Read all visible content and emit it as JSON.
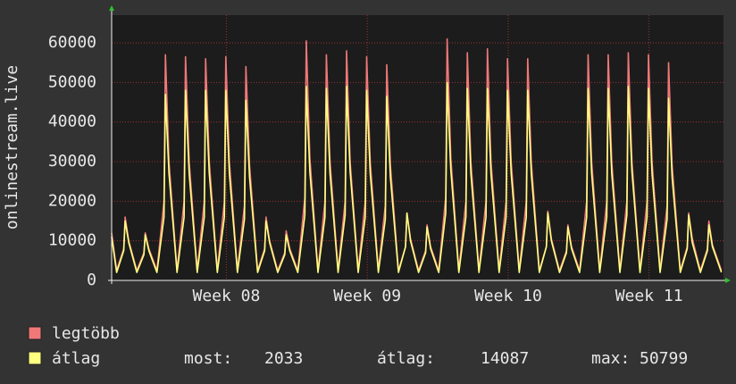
{
  "chart_data": {
    "type": "line",
    "ylabel": "onlinestream.live",
    "xlim": [
      0,
      30.4
    ],
    "xticks": [
      {
        "value": 5.7,
        "label": "Week 08"
      },
      {
        "value": 12.7,
        "label": "Week 09"
      },
      {
        "value": 19.7,
        "label": "Week 10"
      },
      {
        "value": 26.7,
        "label": "Week 11"
      }
    ],
    "ylim": [
      0,
      67000
    ],
    "yticks": [
      0,
      10000,
      20000,
      30000,
      40000,
      50000,
      60000
    ],
    "grid": true,
    "x": [
      0,
      0.25,
      0.6,
      0.67,
      0.85,
      1.25,
      1.6,
      1.67,
      1.85,
      2.25,
      2.6,
      2.67,
      2.85,
      3.25,
      3.6,
      3.67,
      3.85,
      4.25,
      4.6,
      4.67,
      4.85,
      5.25,
      5.6,
      5.67,
      5.85,
      6.25,
      6.6,
      6.67,
      6.85,
      7.25,
      7.6,
      7.67,
      7.85,
      8.25,
      8.6,
      8.67,
      8.85,
      9.25,
      9.6,
      9.67,
      9.85,
      10.25,
      10.6,
      10.67,
      10.85,
      11.25,
      11.6,
      11.67,
      11.85,
      12.25,
      12.6,
      12.67,
      12.85,
      13.25,
      13.6,
      13.67,
      13.85,
      14.25,
      14.6,
      14.67,
      14.85,
      15.25,
      15.6,
      15.67,
      15.85,
      16.25,
      16.6,
      16.67,
      16.85,
      17.25,
      17.6,
      17.67,
      17.85,
      18.25,
      18.6,
      18.67,
      18.85,
      19.25,
      19.6,
      19.67,
      19.85,
      20.25,
      20.6,
      20.67,
      20.85,
      21.25,
      21.6,
      21.67,
      21.85,
      22.25,
      22.6,
      22.67,
      22.85,
      23.25,
      23.6,
      23.67,
      23.85,
      24.25,
      24.6,
      24.67,
      24.85,
      25.25,
      25.6,
      25.67,
      25.85,
      26.25,
      26.6,
      26.67,
      26.85,
      27.25,
      27.6,
      27.67,
      27.85,
      28.25,
      28.6,
      28.67,
      28.85,
      29.25,
      29.6,
      29.67,
      29.85,
      30.3
    ],
    "series": [
      {
        "name": "legtöbb",
        "color": "#f07878",
        "values": [
          12000,
          2500,
          8000,
          16000,
          10000,
          2500,
          7000,
          12000,
          8000,
          2500,
          20000,
          57000,
          30000,
          2500,
          20000,
          56500,
          30000,
          2500,
          20000,
          56000,
          30000,
          2500,
          20000,
          56500,
          30000,
          2500,
          19000,
          54000,
          29000,
          2500,
          8000,
          16000,
          10000,
          2500,
          7000,
          12500,
          8000,
          2500,
          21000,
          60500,
          31000,
          2500,
          20000,
          57000,
          30000,
          2500,
          20000,
          58000,
          30000,
          2500,
          20000,
          56500,
          30000,
          2500,
          19000,
          54500,
          29000,
          2500,
          8500,
          17000,
          10500,
          2500,
          7500,
          14000,
          8500,
          2500,
          21000,
          61000,
          31000,
          2500,
          20000,
          57500,
          30000,
          2500,
          20000,
          58500,
          30000,
          2500,
          20000,
          56000,
          30000,
          2500,
          20000,
          56000,
          30000,
          2500,
          8500,
          17500,
          10500,
          2500,
          7500,
          14000,
          8500,
          2500,
          20000,
          57000,
          30000,
          2500,
          20000,
          57000,
          30000,
          2500,
          20000,
          57500,
          30000,
          2500,
          20000,
          57000,
          30000,
          2500,
          19000,
          55000,
          29000,
          2500,
          8500,
          17000,
          10500,
          2500,
          8000,
          15000,
          9000,
          2500
        ]
      },
      {
        "name": "átlag",
        "color": "#ffff80",
        "values": [
          11000,
          2000,
          7500,
          15000,
          9500,
          2000,
          6500,
          11500,
          7500,
          2000,
          16000,
          47000,
          27000,
          2000,
          16000,
          48000,
          27000,
          2000,
          16000,
          48000,
          27000,
          2000,
          16000,
          48000,
          27000,
          2000,
          15500,
          45500,
          26000,
          2000,
          7500,
          15000,
          9500,
          2000,
          6500,
          11500,
          7500,
          2000,
          16500,
          49000,
          27500,
          2000,
          16000,
          48500,
          27000,
          2000,
          16500,
          49000,
          27500,
          2000,
          16000,
          48000,
          27000,
          2000,
          15500,
          46500,
          26000,
          2000,
          8500,
          17000,
          10000,
          2000,
          7000,
          13500,
          8000,
          2000,
          17000,
          50000,
          28000,
          2000,
          16000,
          48500,
          27000,
          2000,
          16000,
          48500,
          27000,
          2000,
          16000,
          48000,
          27000,
          2000,
          16000,
          48000,
          27000,
          2000,
          8500,
          17000,
          10000,
          2000,
          7000,
          13500,
          8000,
          2000,
          16000,
          48500,
          27000,
          2000,
          16000,
          48500,
          27000,
          2000,
          16500,
          49000,
          27500,
          2000,
          16000,
          48500,
          27000,
          2000,
          15500,
          46000,
          26000,
          2000,
          8000,
          16500,
          9500,
          2000,
          7500,
          14000,
          8500,
          2033
        ]
      }
    ],
    "stats": [
      {
        "label": "most:",
        "value": 2033
      },
      {
        "label": "átlag:",
        "value": 14087
      },
      {
        "label": "max:",
        "value": 50799
      }
    ]
  }
}
